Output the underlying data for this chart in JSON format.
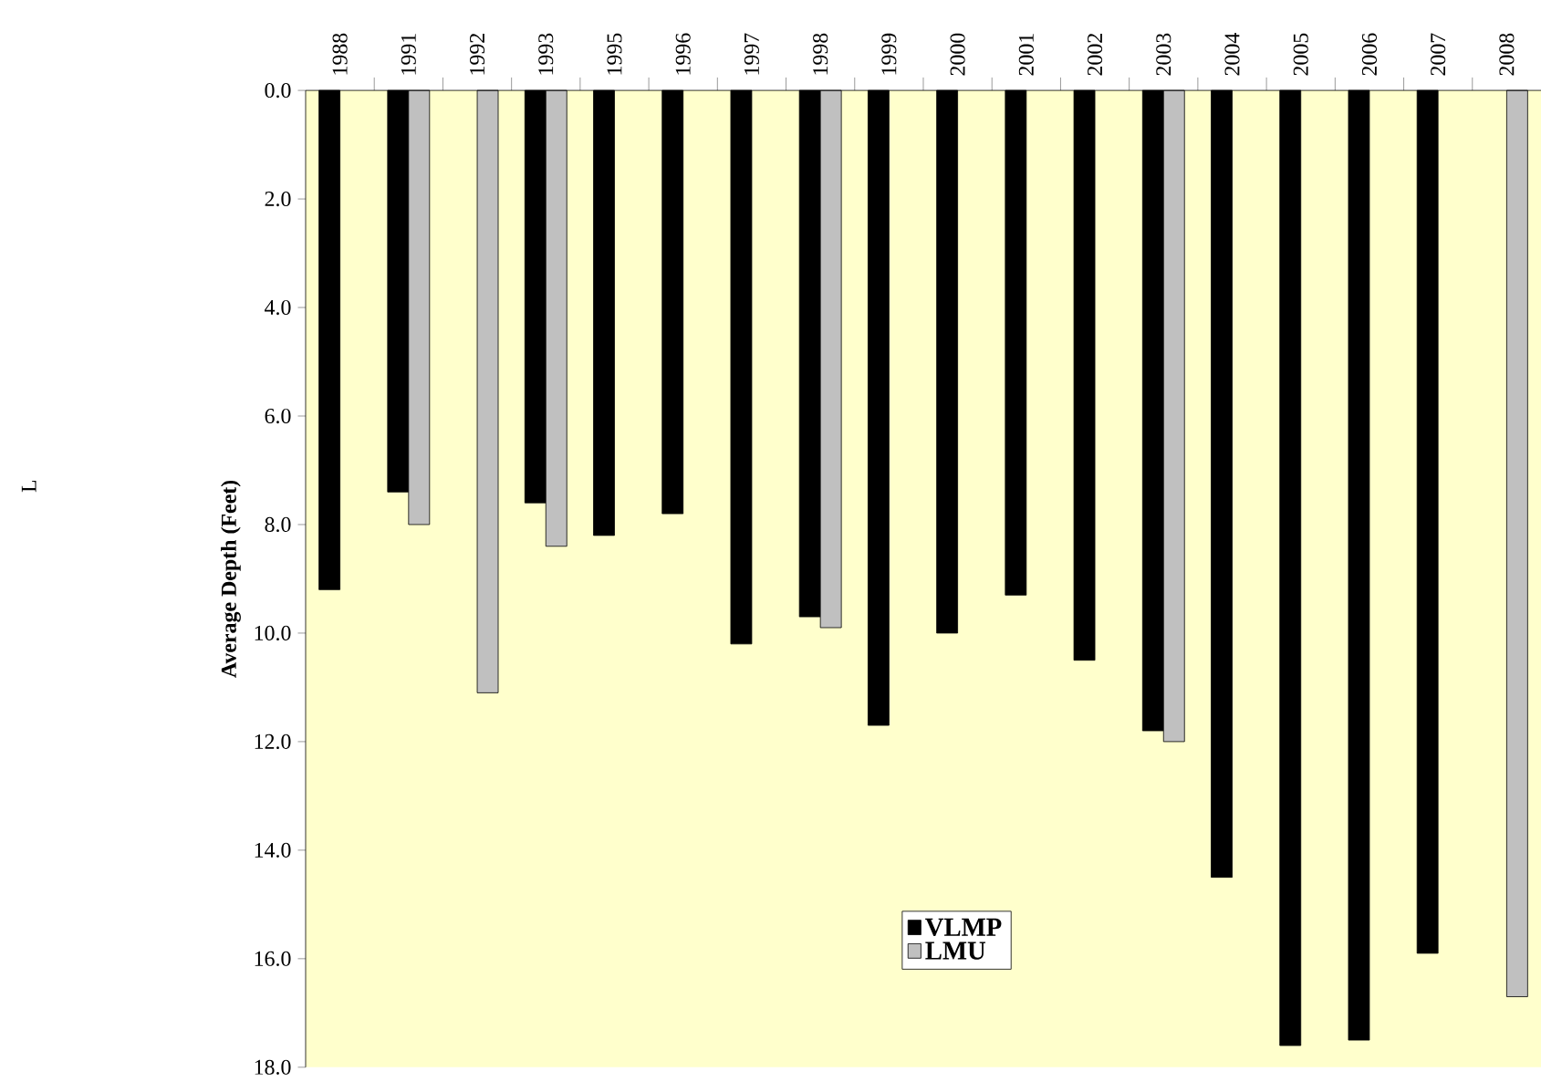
{
  "chart_data": {
    "type": "bar",
    "ylabel": "Average Depth (Feet)",
    "categories": [
      "1988",
      "1991",
      "1992",
      "1993",
      "1995",
      "1996",
      "1997",
      "1998",
      "1999",
      "2000",
      "2001",
      "2002",
      "2003",
      "2004",
      "2005",
      "2006",
      "2007",
      "2008"
    ],
    "series": [
      {
        "name": "VLMP",
        "color": "#000000",
        "values": [
          9.2,
          7.4,
          null,
          7.6,
          8.2,
          7.8,
          10.2,
          9.7,
          11.7,
          10.0,
          9.3,
          10.5,
          11.8,
          14.5,
          17.6,
          17.5,
          15.9,
          null
        ]
      },
      {
        "name": "LMU",
        "color": "#c0c0c0",
        "values": [
          null,
          8.0,
          11.1,
          8.4,
          null,
          null,
          null,
          9.9,
          null,
          null,
          null,
          null,
          12.0,
          null,
          null,
          null,
          null,
          16.7
        ]
      }
    ],
    "ylim": [
      18,
      0
    ],
    "yticks": [
      {
        "value": 0,
        "label": "0.0"
      },
      {
        "value": 2,
        "label": "2.0"
      },
      {
        "value": 4,
        "label": "4.0"
      },
      {
        "value": 6,
        "label": "6.0"
      },
      {
        "value": 8,
        "label": "8.0"
      },
      {
        "value": 10,
        "label": "10.0"
      },
      {
        "value": 12,
        "label": "12.0"
      },
      {
        "value": 14,
        "label": "14.0"
      },
      {
        "value": 16,
        "label": "16.0"
      },
      {
        "value": 18,
        "label": "18.0"
      }
    ],
    "legend": "bottom",
    "grid": false,
    "annotations": [
      "L"
    ]
  }
}
